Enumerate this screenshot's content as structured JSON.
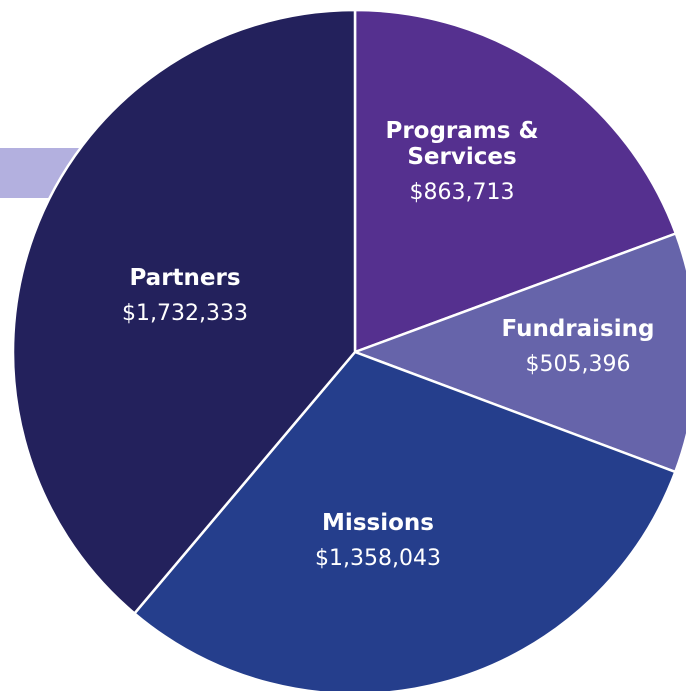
{
  "chart_data": {
    "type": "pie",
    "categories": [
      "Programs & Services",
      "Fundraising",
      "Missions",
      "Partners"
    ],
    "values": [
      863713,
      505396,
      1358043,
      1732333
    ],
    "value_labels": [
      "$863,713",
      "$505,396",
      "$1,358,043",
      "$1,732,333"
    ],
    "colors": [
      "#55308f",
      "#6664aa",
      "#253e8c",
      "#23215c"
    ],
    "start_angle": 0,
    "direction": "clockwise"
  }
}
